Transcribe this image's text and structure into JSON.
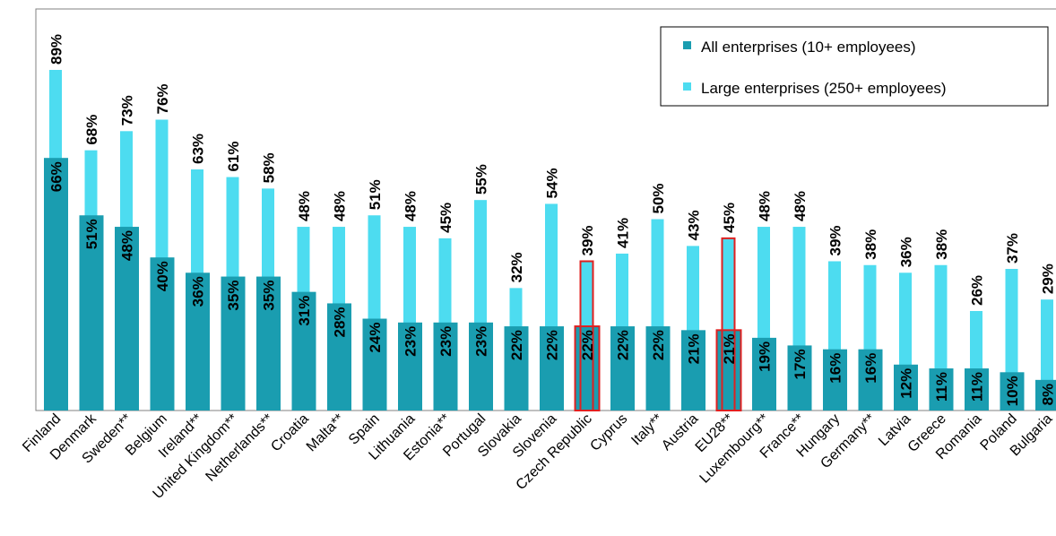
{
  "chart_data": {
    "type": "bar",
    "categories": [
      "Finland",
      "Denmark",
      "Sweden**",
      "Belgium",
      "Ireland**",
      "United Kingdom**",
      "Netherlands**",
      "Croatia",
      "Malta**",
      "Spain",
      "Lithuania",
      "Estonia**",
      "Portugal",
      "Slovakia",
      "Slovenia",
      "Czech Republic",
      "Cyprus",
      "Italy**",
      "Austria",
      "EU28**",
      "Luxembourg**",
      "France**",
      "Hungary",
      "Germany**",
      "Latvia",
      "Greece",
      "Romania",
      "Poland",
      "Bulgaria"
    ],
    "series": [
      {
        "name": "All enterprises (10+ employees)",
        "color": "#1a9db0",
        "values": [
          66,
          51,
          48,
          40,
          36,
          35,
          35,
          31,
          28,
          24,
          23,
          23,
          23,
          22,
          22,
          22,
          22,
          22,
          21,
          21,
          19,
          17,
          16,
          16,
          12,
          11,
          11,
          10,
          8
        ],
        "labels": [
          "66%",
          "51%",
          "48%",
          "40%",
          "36%",
          "35%",
          "35%",
          "31%",
          "28%",
          "24%",
          "23%",
          "23%",
          "23%",
          "22%",
          "22%",
          "22%",
          "22%",
          "22%",
          "21%",
          "21%",
          "19%",
          "17%",
          "16%",
          "16%",
          "12%",
          "11%",
          "11%",
          "10%",
          "8%"
        ]
      },
      {
        "name": "Large enterprises (250+ employees)",
        "color": "#4ddcf0",
        "values": [
          89,
          68,
          73,
          76,
          63,
          61,
          58,
          48,
          48,
          51,
          48,
          45,
          55,
          32,
          54,
          39,
          41,
          50,
          43,
          45,
          48,
          48,
          39,
          38,
          36,
          38,
          26,
          37,
          29
        ],
        "labels": [
          "89%",
          "68%",
          "73%",
          "76%",
          "63%",
          "61%",
          "58%",
          "48%",
          "48%",
          "51%",
          "48%",
          "45%",
          "55%",
          "32%",
          "54%",
          "39%",
          "41%",
          "50%",
          "43%",
          "45%",
          "48%",
          "48%",
          "39%",
          "38%",
          "36%",
          "38%",
          "26%",
          "37%",
          "29%"
        ]
      }
    ],
    "highlighted": [
      "Czech Republic",
      "EU28**"
    ],
    "highlight_color": "#e02020",
    "ylim": [
      0,
      100
    ],
    "grid": false,
    "legend_position": "top-right"
  }
}
